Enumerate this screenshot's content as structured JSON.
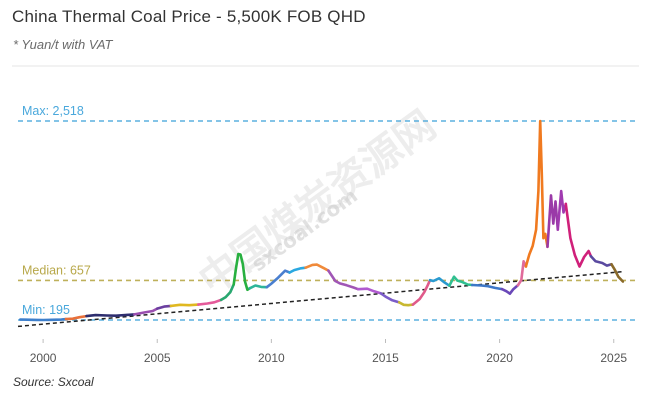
{
  "chart_data": {
    "type": "line",
    "title": "China Thermal Coal Price - 5,500K FOB QHD",
    "subtitle": "* Yuan/t with VAT",
    "source": "Source: Sxcoal",
    "xlabel": "",
    "ylabel": "",
    "xlim": [
      1998.9,
      2025.8
    ],
    "ylim": [
      90,
      2518
    ],
    "x_ticks": [
      2000,
      2005,
      2010,
      2015,
      2020,
      2025
    ],
    "reference_lines": [
      {
        "label": "Max: 2,518",
        "value": 2518,
        "color": "#4aa8dc"
      },
      {
        "label": "Median: 657",
        "value": 657,
        "color": "#b8a84a"
      },
      {
        "label": "Min: 195",
        "value": 195,
        "color": "#4aa8dc"
      }
    ],
    "trendline": {
      "style": "dashed",
      "color": "#222222",
      "from": [
        1998.9,
        120
      ],
      "to": [
        2025.4,
        760
      ]
    },
    "watermark": {
      "latin": "sxcoal.com",
      "cjk": "中国煤炭资源网"
    },
    "segments": [
      {
        "color": "#3d7fcc",
        "points": [
          [
            1999.0,
            200
          ],
          [
            1999.3,
            198
          ],
          [
            1999.7,
            196
          ],
          [
            2000.0,
            195
          ],
          [
            2000.4,
            197
          ],
          [
            2000.8,
            200
          ],
          [
            2001.0,
            205
          ]
        ]
      },
      {
        "color": "#e8703a",
        "points": [
          [
            2001.0,
            205
          ],
          [
            2001.3,
            210
          ],
          [
            2001.6,
            228
          ],
          [
            2001.9,
            240
          ]
        ]
      },
      {
        "color": "#2d2d6e",
        "points": [
          [
            2001.9,
            240
          ],
          [
            2002.3,
            252
          ],
          [
            2002.8,
            248
          ],
          [
            2003.2,
            245
          ],
          [
            2003.6,
            253
          ],
          [
            2004.0,
            260
          ]
        ]
      },
      {
        "color": "#9a4fb0",
        "points": [
          [
            2004.0,
            260
          ],
          [
            2004.4,
            282
          ],
          [
            2004.8,
            300
          ],
          [
            2005.0,
            328
          ]
        ]
      },
      {
        "color": "#6b3fa0",
        "points": [
          [
            2005.0,
            328
          ],
          [
            2005.3,
            352
          ],
          [
            2005.6,
            360
          ]
        ]
      },
      {
        "color": "#e0b820",
        "points": [
          [
            2005.6,
            360
          ],
          [
            2006.0,
            372
          ],
          [
            2006.4,
            368
          ],
          [
            2006.8,
            375
          ]
        ]
      },
      {
        "color": "#e55a9a",
        "points": [
          [
            2006.8,
            375
          ],
          [
            2007.2,
            388
          ],
          [
            2007.5,
            402
          ],
          [
            2007.8,
            430
          ]
        ]
      },
      {
        "color": "#2aa870",
        "points": [
          [
            2007.8,
            430
          ],
          [
            2008.0,
            462
          ],
          [
            2008.2,
            520
          ],
          [
            2008.35,
            610
          ]
        ]
      },
      {
        "color": "#28b040",
        "points": [
          [
            2008.35,
            610
          ],
          [
            2008.45,
            800
          ],
          [
            2008.55,
            965
          ],
          [
            2008.65,
            960
          ],
          [
            2008.75,
            850
          ],
          [
            2008.85,
            640
          ],
          [
            2008.95,
            548
          ],
          [
            2009.05,
            565
          ]
        ]
      },
      {
        "color": "#2eb59a",
        "points": [
          [
            2009.05,
            565
          ],
          [
            2009.3,
            598
          ],
          [
            2009.55,
            582
          ],
          [
            2009.8,
            578
          ]
        ]
      },
      {
        "color": "#4a7fcf",
        "points": [
          [
            2009.8,
            578
          ],
          [
            2010.0,
            620
          ],
          [
            2010.3,
            690
          ],
          [
            2010.6,
            770
          ],
          [
            2010.8,
            750
          ]
        ]
      },
      {
        "color": "#2aa8e0",
        "points": [
          [
            2010.8,
            750
          ],
          [
            2011.0,
            778
          ],
          [
            2011.3,
            798
          ],
          [
            2011.5,
            805
          ]
        ]
      },
      {
        "color": "#f08a3a",
        "points": [
          [
            2011.5,
            805
          ],
          [
            2011.8,
            838
          ],
          [
            2012.0,
            842
          ],
          [
            2012.3,
            800
          ],
          [
            2012.5,
            772
          ]
        ]
      },
      {
        "color": "#a056b5",
        "points": [
          [
            2012.5,
            772
          ],
          [
            2012.8,
            650
          ],
          [
            2013.0,
            622
          ],
          [
            2013.3,
            600
          ],
          [
            2013.6,
            575
          ],
          [
            2013.8,
            555
          ]
        ]
      },
      {
        "color": "#b05ad0",
        "points": [
          [
            2013.8,
            555
          ],
          [
            2014.2,
            560
          ],
          [
            2014.5,
            530
          ],
          [
            2014.8,
            505
          ]
        ]
      },
      {
        "color": "#7b5cc8",
        "points": [
          [
            2014.8,
            505
          ],
          [
            2015.0,
            468
          ],
          [
            2015.3,
            425
          ],
          [
            2015.6,
            400
          ]
        ]
      },
      {
        "color": "#c8b830",
        "points": [
          [
            2015.6,
            400
          ],
          [
            2015.8,
            372
          ],
          [
            2016.0,
            368
          ],
          [
            2016.2,
            375
          ]
        ]
      },
      {
        "color": "#e05a8a",
        "points": [
          [
            2016.2,
            375
          ],
          [
            2016.5,
            440
          ],
          [
            2016.7,
            520
          ],
          [
            2016.85,
            600
          ],
          [
            2016.95,
            660
          ]
        ]
      },
      {
        "color": "#2a9acf",
        "points": [
          [
            2016.95,
            660
          ],
          [
            2017.1,
            650
          ],
          [
            2017.35,
            682
          ],
          [
            2017.55,
            640
          ],
          [
            2017.8,
            595
          ]
        ]
      },
      {
        "color": "#30c090",
        "points": [
          [
            2017.8,
            595
          ],
          [
            2018.0,
            700
          ],
          [
            2018.15,
            655
          ],
          [
            2018.35,
            640
          ],
          [
            2018.6,
            610
          ],
          [
            2018.8,
            604
          ]
        ]
      },
      {
        "color": "#3e78c8",
        "points": [
          [
            2018.8,
            604
          ],
          [
            2019.2,
            598
          ],
          [
            2019.5,
            590
          ],
          [
            2019.8,
            570
          ],
          [
            2020.1,
            556
          ]
        ]
      },
      {
        "color": "#6a48b8",
        "points": [
          [
            2020.1,
            556
          ],
          [
            2020.3,
            530
          ],
          [
            2020.45,
            502
          ],
          [
            2020.6,
            555
          ],
          [
            2020.8,
            600
          ]
        ]
      },
      {
        "color": "#e06a9a",
        "points": [
          [
            2020.8,
            600
          ],
          [
            2020.95,
            660
          ],
          [
            2021.05,
            880
          ],
          [
            2021.15,
            820
          ]
        ]
      },
      {
        "color": "#f07a20",
        "points": [
          [
            2021.15,
            820
          ],
          [
            2021.3,
            960
          ],
          [
            2021.45,
            1060
          ],
          [
            2021.6,
            1250
          ],
          [
            2021.7,
            1700
          ],
          [
            2021.78,
            2518
          ],
          [
            2021.85,
            1900
          ],
          [
            2021.92,
            1150
          ],
          [
            2022.0,
            1200
          ],
          [
            2022.1,
            1050
          ]
        ]
      },
      {
        "color": "#9a3aa8",
        "points": [
          [
            2022.1,
            1050
          ],
          [
            2022.25,
            1650
          ],
          [
            2022.35,
            1320
          ],
          [
            2022.45,
            1580
          ],
          [
            2022.55,
            1250
          ]
        ]
      },
      {
        "color": "#a03ab0",
        "points": [
          [
            2022.55,
            1250
          ],
          [
            2022.7,
            1700
          ],
          [
            2022.8,
            1450
          ],
          [
            2022.9,
            1550
          ]
        ]
      },
      {
        "color": "#d0207a",
        "points": [
          [
            2022.9,
            1550
          ],
          [
            2023.1,
            1150
          ],
          [
            2023.3,
            950
          ],
          [
            2023.5,
            820
          ],
          [
            2023.7,
            930
          ],
          [
            2023.9,
            1000
          ],
          [
            2024.0,
            940
          ]
        ]
      },
      {
        "color": "#5a4aa0",
        "points": [
          [
            2024.0,
            940
          ],
          [
            2024.2,
            880
          ],
          [
            2024.5,
            860
          ],
          [
            2024.7,
            830
          ],
          [
            2024.9,
            845
          ]
        ]
      },
      {
        "color": "#8a6a2a",
        "points": [
          [
            2024.9,
            845
          ],
          [
            2025.05,
            780
          ],
          [
            2025.2,
            700
          ],
          [
            2025.4,
            645
          ]
        ]
      }
    ]
  }
}
